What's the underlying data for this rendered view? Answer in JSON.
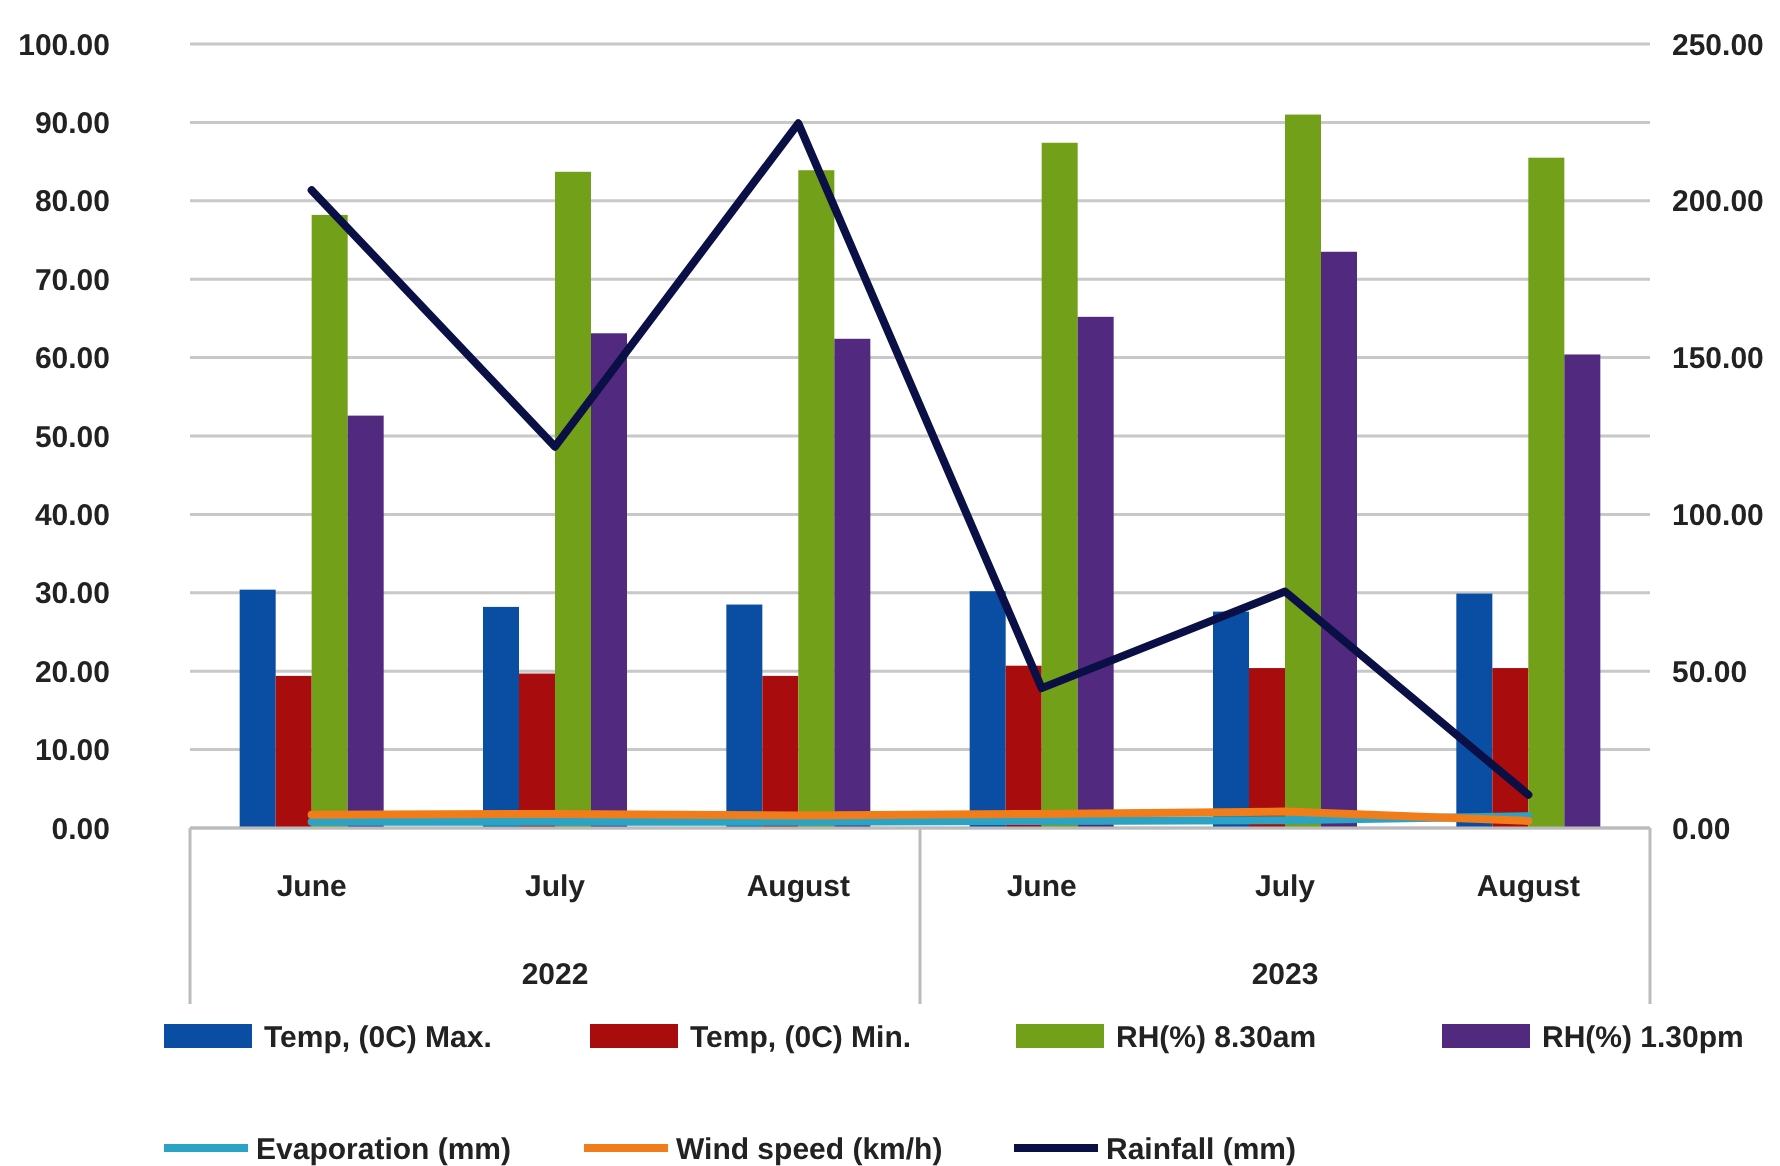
{
  "chart_data": {
    "type": "bar",
    "categories": [
      "June",
      "July",
      "August",
      "June",
      "July",
      "August"
    ],
    "annotations": [
      "2022",
      "2023"
    ],
    "ylim": [
      0,
      100
    ],
    "yticks": [
      {
        "value": 0,
        "label": "0.00"
      },
      {
        "value": 10,
        "label": "10.00"
      },
      {
        "value": 20,
        "label": "20.00"
      },
      {
        "value": 30,
        "label": "30.00"
      },
      {
        "value": 40,
        "label": "40.00"
      },
      {
        "value": 50,
        "label": "50.00"
      },
      {
        "value": 60,
        "label": "60.00"
      },
      {
        "value": 70,
        "label": "70.00"
      },
      {
        "value": 80,
        "label": "80.00"
      },
      {
        "value": 90,
        "label": "90.00"
      },
      {
        "value": 100,
        "label": "100.00"
      }
    ],
    "y2lim": [
      0,
      250
    ],
    "y2ticks": [
      {
        "value": 0,
        "label": "0.00"
      },
      {
        "value": 50,
        "label": "50.00"
      },
      {
        "value": 100,
        "label": "100.00"
      },
      {
        "value": 150,
        "label": "150.00"
      },
      {
        "value": 200,
        "label": "200.00"
      },
      {
        "value": 250,
        "label": "250.00"
      }
    ],
    "grid": "y",
    "legend": "bottom",
    "marker": "none",
    "line_style": "solid",
    "series": [
      {
        "name": "Temp, (0C) Max.",
        "color": "#0a4ea3",
        "values": [
          30.4,
          28.2,
          28.5,
          30.2,
          27.6,
          29.9
        ]
      },
      {
        "name": "Temp, (0C) Min.",
        "color": "#a80c0c",
        "values": [
          19.4,
          19.7,
          19.4,
          20.7,
          20.4,
          20.4
        ]
      },
      {
        "name": "RH(%) 8.30am",
        "color": "#72a019",
        "values": [
          78.2,
          83.7,
          83.9,
          87.4,
          91.0,
          85.5
        ]
      },
      {
        "name": "RH(%) 1.30pm",
        "color": "#512a80",
        "values": [
          52.6,
          63.1,
          62.4,
          65.2,
          73.5,
          60.4
        ]
      },
      {
        "name": "Evaporation (mm)",
        "type": "line",
        "color": "#2aa3c4",
        "values": [
          0.8,
          0.8,
          0.8,
          0.9,
          1.0,
          1.5
        ]
      },
      {
        "name": "Wind speed (km/h)",
        "type": "line",
        "color": "#f07c1a",
        "values": [
          1.7,
          1.8,
          1.6,
          1.8,
          2.1,
          0.9
        ]
      },
      {
        "name": "Rainfall (mm)",
        "type": "line",
        "axis": "y2",
        "color": "#0a0f45",
        "values": [
          203.4,
          121.6,
          224.7,
          44.6,
          75.4,
          10.6
        ]
      }
    ]
  }
}
